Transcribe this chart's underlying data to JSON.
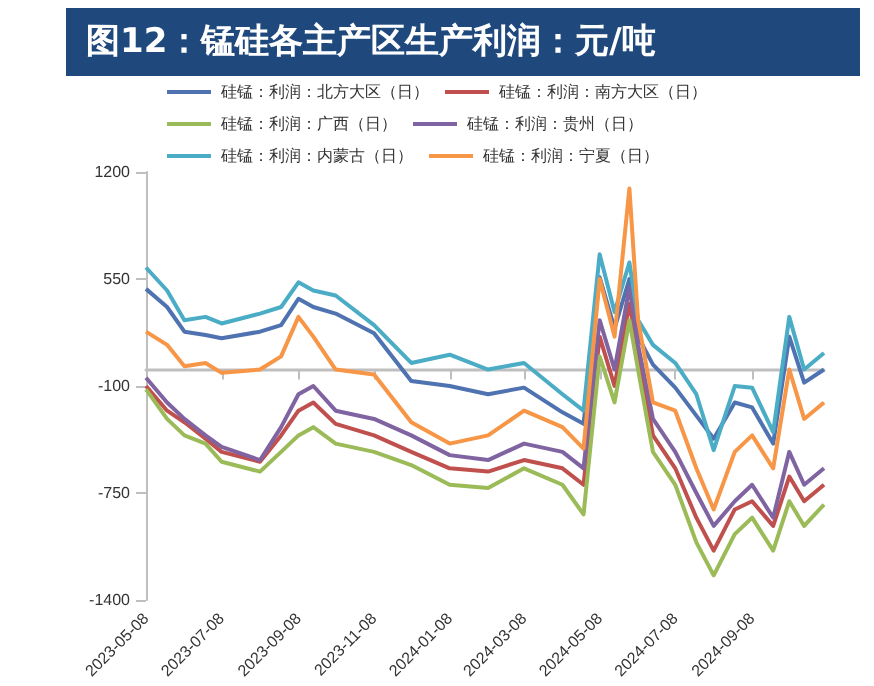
{
  "chart_data": {
    "type": "line",
    "title": "图12：锰硅各主产区生产利润：元/吨",
    "x": [
      "2023-05-08",
      "2023-05-25",
      "2023-06-08",
      "2023-06-25",
      "2023-07-08",
      "2023-08-08",
      "2023-08-25",
      "2023-09-08",
      "2023-09-20",
      "2023-10-08",
      "2023-11-08",
      "2023-12-08",
      "2024-01-08",
      "2024-02-08",
      "2024-03-08",
      "2024-04-08",
      "2024-04-25",
      "2024-05-08",
      "2024-05-20",
      "2024-06-01",
      "2024-06-08",
      "2024-06-20",
      "2024-07-08",
      "2024-07-25",
      "2024-08-08",
      "2024-08-25",
      "2024-09-08",
      "2024-09-25",
      "2024-10-08",
      "2024-10-20",
      "2024-11-05"
    ],
    "series": [
      {
        "name": "硅锰：利润：北方大区（日）",
        "color": "#4f72b0",
        "values": [
          490,
          380,
          230,
          210,
          190,
          230,
          270,
          430,
          380,
          340,
          220,
          -70,
          -100,
          -150,
          -110,
          -260,
          -330,
          560,
          250,
          550,
          200,
          30,
          -110,
          -280,
          -420,
          -200,
          -230,
          -450,
          200,
          -80,
          0
        ]
      },
      {
        "name": "硅锰：利润：南方大区（日）",
        "color": "#c0504d",
        "values": [
          -100,
          -250,
          -320,
          -420,
          -500,
          -560,
          -400,
          -250,
          -200,
          -330,
          -400,
          -500,
          -600,
          -620,
          -550,
          -600,
          -700,
          200,
          -100,
          400,
          100,
          -400,
          -600,
          -900,
          -1100,
          -850,
          -800,
          -950,
          -650,
          -800,
          -700
        ]
      },
      {
        "name": "硅锰：利润：广西（日）",
        "color": "#9bbb59",
        "values": [
          -120,
          -300,
          -400,
          -450,
          -560,
          -620,
          -500,
          -400,
          -350,
          -450,
          -500,
          -580,
          -700,
          -720,
          -600,
          -700,
          -880,
          80,
          -200,
          300,
          0,
          -500,
          -700,
          -1050,
          -1250,
          -1000,
          -900,
          -1100,
          -800,
          -950,
          -820
        ]
      },
      {
        "name": "硅锰：利润：贵州（日）",
        "color": "#8064a2",
        "values": [
          -50,
          -200,
          -300,
          -400,
          -470,
          -550,
          -350,
          -150,
          -100,
          -250,
          -300,
          -400,
          -520,
          -550,
          -450,
          -500,
          -600,
          300,
          0,
          500,
          150,
          -300,
          -500,
          -750,
          -950,
          -800,
          -700,
          -900,
          -500,
          -700,
          -600
        ]
      },
      {
        "name": "硅锰：利润：内蒙古（日）",
        "color": "#4bacc6",
        "values": [
          620,
          480,
          300,
          320,
          280,
          340,
          380,
          530,
          480,
          450,
          270,
          40,
          90,
          0,
          40,
          -150,
          -250,
          700,
          350,
          650,
          300,
          150,
          40,
          -150,
          -490,
          -100,
          -110,
          -380,
          320,
          0,
          100
        ]
      },
      {
        "name": "硅锰：利润：宁夏（日）",
        "color": "#f79646",
        "values": [
          230,
          150,
          20,
          40,
          -20,
          0,
          80,
          320,
          200,
          0,
          -30,
          -320,
          -450,
          -400,
          -250,
          -350,
          -480,
          550,
          200,
          1100,
          300,
          -200,
          -250,
          -600,
          -850,
          -500,
          -400,
          -600,
          0,
          -300,
          -200
        ]
      }
    ],
    "xlim": [
      "2023-05-08",
      "2024-11-05"
    ],
    "xticks": [
      {
        "value": "2023-05-08",
        "label": "2023-05-08"
      },
      {
        "value": "2023-07-08",
        "label": "2023-07-08"
      },
      {
        "value": "2023-09-08",
        "label": "2023-09-08"
      },
      {
        "value": "2023-11-08",
        "label": "2023-11-08"
      },
      {
        "value": "2024-01-08",
        "label": "2024-01-08"
      },
      {
        "value": "2024-03-08",
        "label": "2024-03-08"
      },
      {
        "value": "2024-05-08",
        "label": "2024-05-08"
      },
      {
        "value": "2024-07-08",
        "label": "2024-07-08"
      },
      {
        "value": "2024-09-08",
        "label": "2024-09-08"
      }
    ],
    "ylim": [
      -1400,
      1200
    ],
    "yticks": [
      -1400,
      -750,
      -100,
      550,
      1200
    ],
    "grid": false,
    "legend": "top",
    "marker": "none",
    "line_style": "solid"
  }
}
